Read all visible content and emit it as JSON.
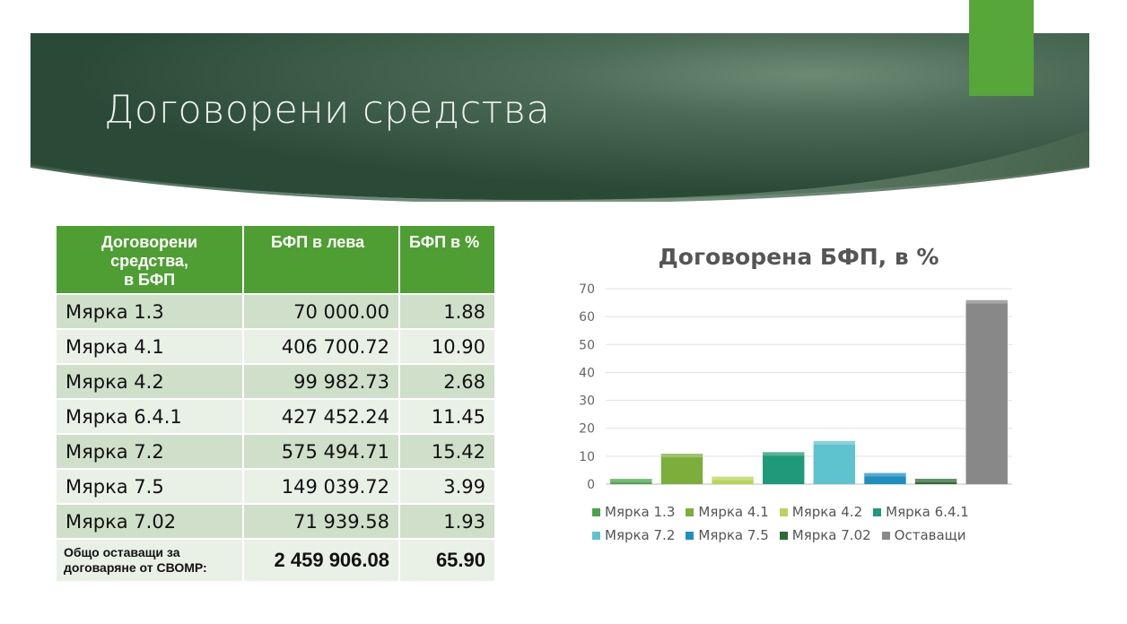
{
  "slide": {
    "title": "Договорени средства"
  },
  "table": {
    "headers": [
      "Договорени средства,\nв БФП",
      "БФП в лева",
      "БФП в %"
    ],
    "rows": [
      {
        "label": "Мярка 1.3",
        "amount": "70 000.00",
        "percent": "1.88"
      },
      {
        "label": "Мярка 4.1",
        "amount": "406 700.72",
        "percent": "10.90"
      },
      {
        "label": "Мярка 4.2",
        "amount": "99 982.73",
        "percent": "2.68"
      },
      {
        "label": "Мярка 6.4.1",
        "amount": "427 452.24",
        "percent": "11.45"
      },
      {
        "label": "Мярка 7.2",
        "amount": "575 494.71",
        "percent": "15.42"
      },
      {
        "label": "Мярка 7.5",
        "amount": "149 039.72",
        "percent": "3.99"
      },
      {
        "label": "Мярка 7.02",
        "amount": "71 939.58",
        "percent": "1.93"
      }
    ],
    "total": {
      "label": "Общо оставащи за договаряне от СВОМР:",
      "amount": "2 459 906.08",
      "percent": "65.90"
    }
  },
  "chart_data": {
    "type": "bar",
    "title": "Договорена БФП, в %",
    "categories": [
      "Мярка 1.3",
      "Мярка 4.1",
      "Мярка 4.2",
      "Мярка 6.4.1",
      "Мярка 7.2",
      "Мярка 7.5",
      "Мярка 7.02",
      "Оставащи"
    ],
    "values": [
      1.88,
      10.9,
      2.68,
      11.45,
      15.42,
      3.99,
      1.93,
      65.9
    ],
    "colors": [
      "#4aa34a",
      "#7dae3c",
      "#b8d45a",
      "#1f9a78",
      "#5ec3cf",
      "#1f8fc0",
      "#2f6b34",
      "#888888"
    ],
    "ylim": [
      0,
      70
    ],
    "yticks": [
      0,
      10,
      20,
      30,
      40,
      50,
      60,
      70
    ],
    "grid": true,
    "legend": "bottom",
    "xlabel": "",
    "ylabel": ""
  }
}
